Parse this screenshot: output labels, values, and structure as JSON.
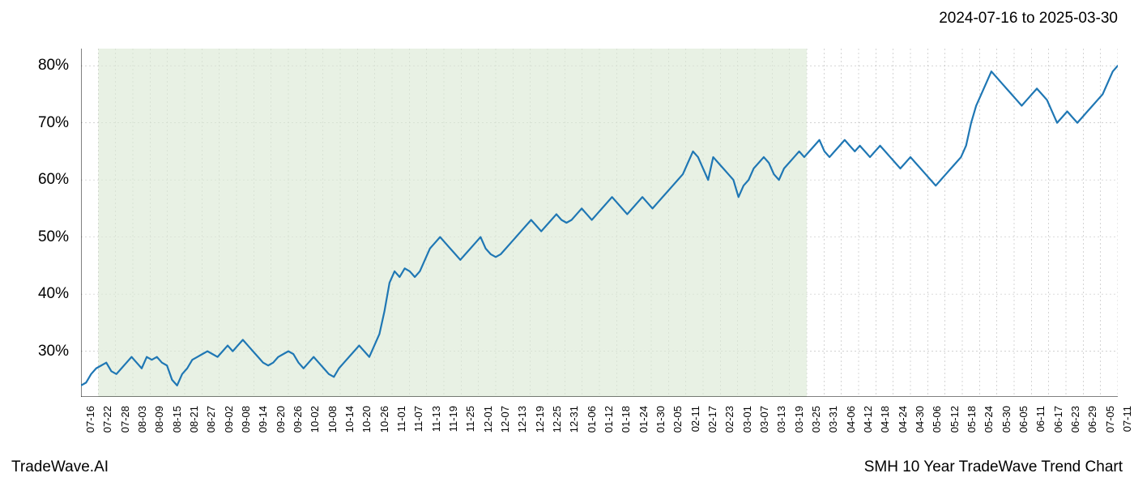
{
  "header": {
    "date_range": "2024-07-16 to 2025-03-30"
  },
  "footer": {
    "left": "TradeWave.AI",
    "right": "SMH 10 Year TradeWave Trend Chart"
  },
  "chart": {
    "type": "line",
    "background_color": "#ffffff",
    "highlight_region": {
      "x_start_index": 1,
      "x_end_index": 42,
      "fill": "#dce9d5",
      "opacity": 0.65
    },
    "line_color": "#1f77b4",
    "line_width": 2.2,
    "grid_color": "#b8b8b8",
    "grid_dash": "2,3",
    "axis_color": "#000000",
    "y_axis": {
      "min": 22,
      "max": 83,
      "ticks": [
        30,
        40,
        50,
        60,
        70,
        80
      ],
      "tick_labels": [
        "30%",
        "40%",
        "50%",
        "60%",
        "70%",
        "80%"
      ],
      "label_fontsize": 19,
      "label_color": "#000000"
    },
    "x_axis": {
      "labels": [
        "07-16",
        "07-22",
        "07-28",
        "08-03",
        "08-09",
        "08-15",
        "08-21",
        "08-27",
        "09-02",
        "09-08",
        "09-14",
        "09-20",
        "09-26",
        "10-02",
        "10-08",
        "10-14",
        "10-20",
        "10-26",
        "11-01",
        "11-07",
        "11-13",
        "11-19",
        "11-25",
        "12-01",
        "12-07",
        "12-13",
        "12-19",
        "12-25",
        "12-31",
        "01-06",
        "01-12",
        "01-18",
        "01-24",
        "01-30",
        "02-05",
        "02-11",
        "02-17",
        "02-23",
        "03-01",
        "03-07",
        "03-13",
        "03-19",
        "03-25",
        "03-31",
        "04-06",
        "04-12",
        "04-18",
        "04-24",
        "04-30",
        "05-06",
        "05-12",
        "05-18",
        "05-24",
        "05-30",
        "06-05",
        "06-11",
        "06-17",
        "06-23",
        "06-29",
        "07-05",
        "07-11"
      ],
      "label_fontsize": 13,
      "label_color": "#000000",
      "label_rotation": -90
    },
    "series": {
      "values": [
        24,
        24.5,
        26,
        27,
        27.5,
        28,
        26.5,
        26,
        27,
        28,
        29,
        28,
        27,
        29,
        28.5,
        29,
        28,
        27.5,
        25,
        24,
        26,
        27,
        28.5,
        29,
        29.5,
        30,
        29.5,
        29,
        30,
        31,
        30,
        31,
        32,
        31,
        30,
        29,
        28,
        27.5,
        28,
        29,
        29.5,
        30,
        29.5,
        28,
        27,
        28,
        29,
        28,
        27,
        26,
        25.5,
        27,
        28,
        29,
        30,
        31,
        30,
        29,
        31,
        33,
        37,
        42,
        44,
        43,
        44.5,
        44,
        43,
        44,
        46,
        48,
        49,
        50,
        49,
        48,
        47,
        46,
        47,
        48,
        49,
        50,
        48,
        47,
        46.5,
        47,
        48,
        49,
        50,
        51,
        52,
        53,
        52,
        51,
        52,
        53,
        54,
        53,
        52.5,
        53,
        54,
        55,
        54,
        53,
        54,
        55,
        56,
        57,
        56,
        55,
        54,
        55,
        56,
        57,
        56,
        55,
        56,
        57,
        58,
        59,
        60,
        61,
        63,
        65,
        64,
        62,
        60,
        64,
        63,
        62,
        61,
        60,
        57,
        59,
        60,
        62,
        63,
        64,
        63,
        61,
        60,
        62,
        63,
        64,
        65,
        64,
        65,
        66,
        67,
        65,
        64,
        65,
        66,
        67,
        66,
        65,
        66,
        65,
        64,
        65,
        66,
        65,
        64,
        63,
        62,
        63,
        64,
        63,
        62,
        61,
        60,
        59,
        60,
        61,
        62,
        63,
        64,
        66,
        70,
        73,
        75,
        77,
        79,
        78,
        77,
        76,
        75,
        74,
        73,
        74,
        75,
        76,
        75,
        74,
        72,
        70,
        71,
        72,
        71,
        70,
        71,
        72,
        73,
        74,
        75,
        77,
        79,
        80
      ]
    }
  }
}
